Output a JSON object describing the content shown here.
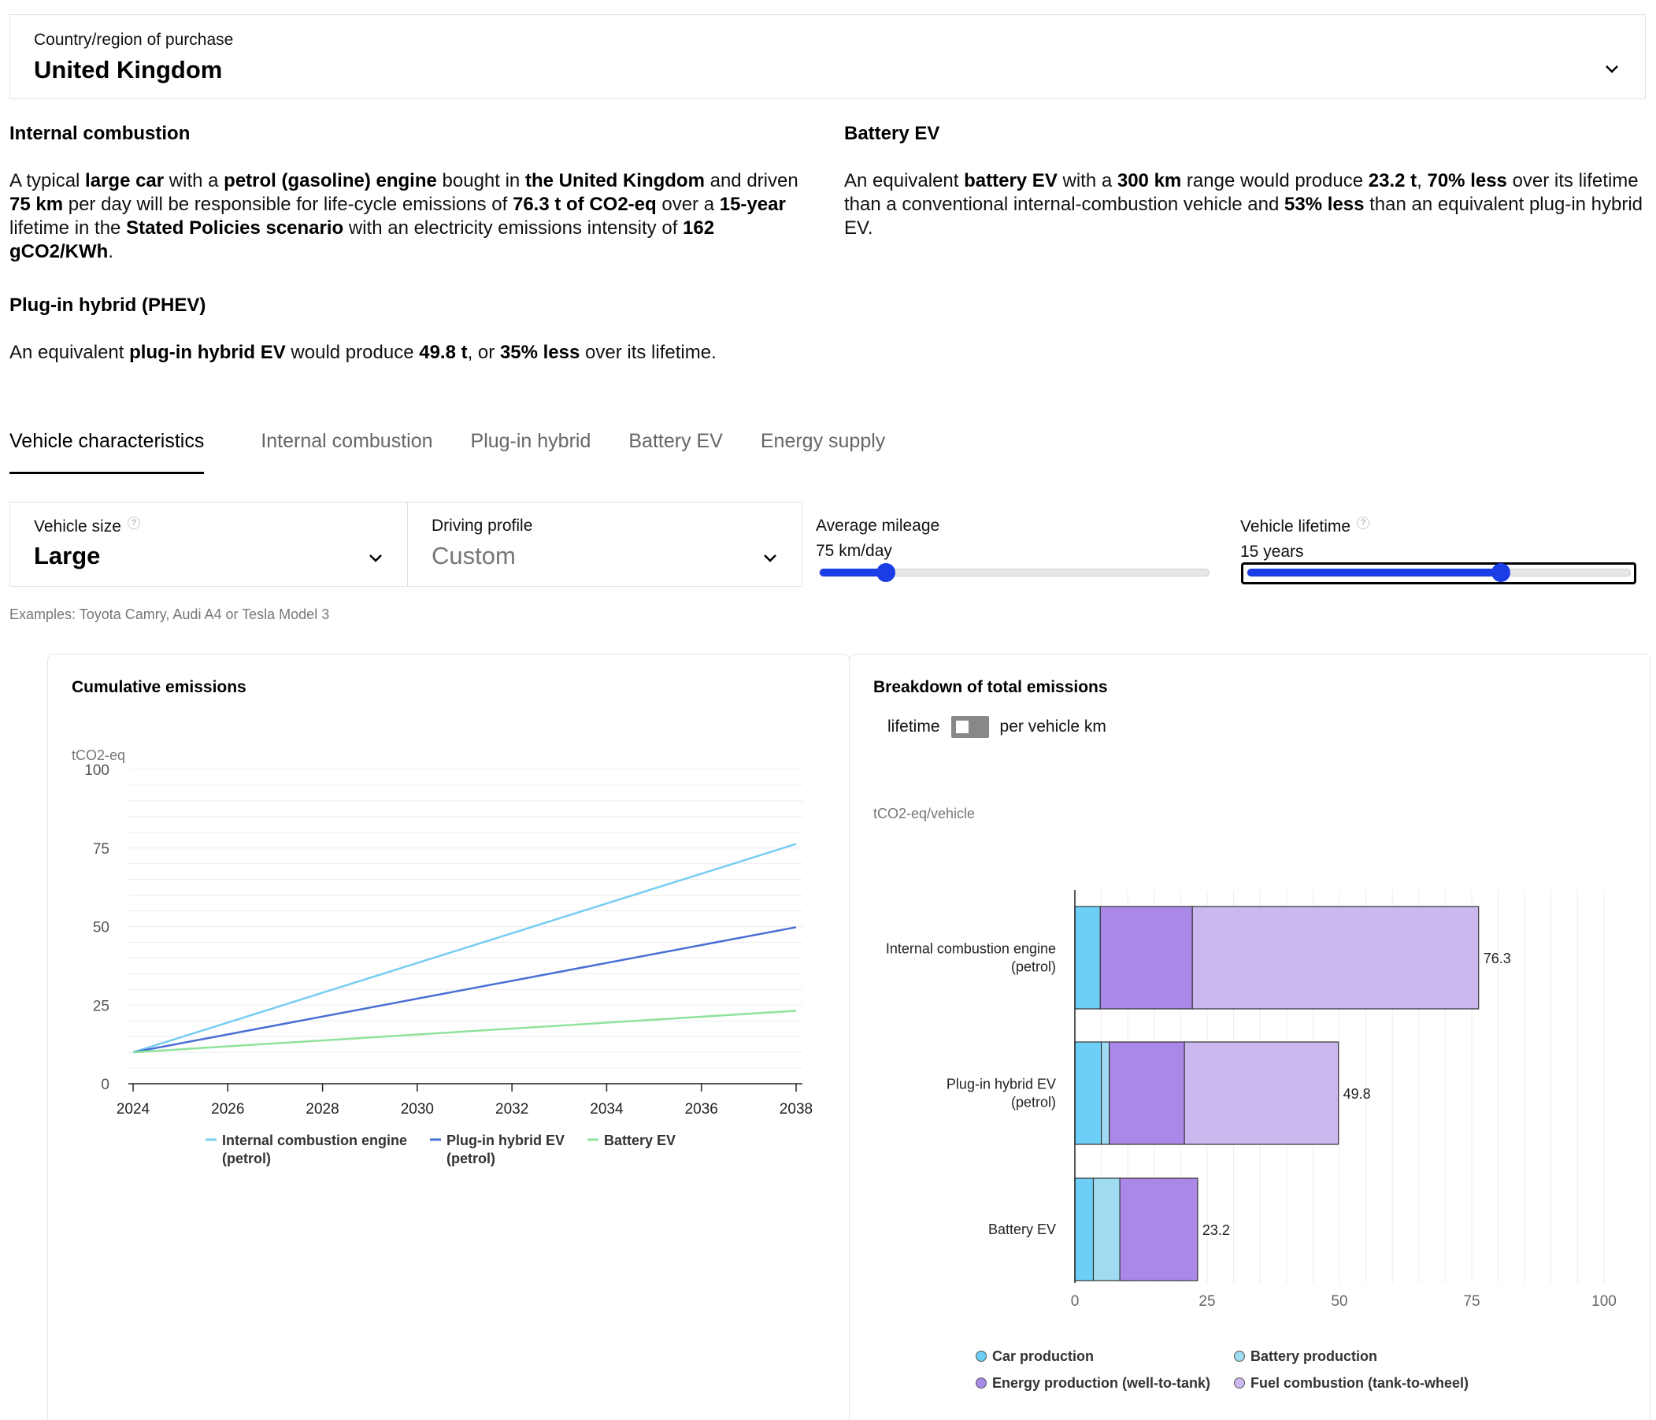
{
  "country": {
    "label": "Country/region of purchase",
    "value": "United Kingdom"
  },
  "summary": {
    "ice": {
      "heading": "Internal combustion",
      "parts": [
        {
          "t": "A typical ",
          "b": false
        },
        {
          "t": "large car",
          "b": true
        },
        {
          "t": " with a ",
          "b": false
        },
        {
          "t": "petrol (gasoline) engine",
          "b": true
        },
        {
          "t": " bought in ",
          "b": false
        },
        {
          "t": "the United Kingdom",
          "b": true
        },
        {
          "t": " and driven ",
          "b": false
        },
        {
          "t": "75 km",
          "b": true
        },
        {
          "t": " per day will be responsible for life-cycle emissions of ",
          "b": false
        },
        {
          "t": "76.3 t of CO2-eq",
          "b": true
        },
        {
          "t": " over a ",
          "b": false
        },
        {
          "t": "15-year",
          "b": true
        },
        {
          "t": " lifetime in the ",
          "b": false
        },
        {
          "t": "Stated Policies scenario",
          "b": true
        },
        {
          "t": " with an electricity emissions intensity of ",
          "b": false
        },
        {
          "t": "162 gCO2/KWh",
          "b": true
        },
        {
          "t": ".",
          "b": false
        }
      ]
    },
    "phev": {
      "heading": "Plug-in hybrid (PHEV)",
      "parts": [
        {
          "t": "An equivalent ",
          "b": false
        },
        {
          "t": "plug-in hybrid EV",
          "b": true
        },
        {
          "t": " would produce ",
          "b": false
        },
        {
          "t": "49.8 t",
          "b": true
        },
        {
          "t": ", or ",
          "b": false
        },
        {
          "t": "35% less",
          "b": true
        },
        {
          "t": " over its lifetime.",
          "b": false
        }
      ]
    },
    "bev": {
      "heading": "Battery EV",
      "parts": [
        {
          "t": "An equivalent ",
          "b": false
        },
        {
          "t": "battery EV",
          "b": true
        },
        {
          "t": " with a ",
          "b": false
        },
        {
          "t": "300 km",
          "b": true
        },
        {
          "t": " range would produce ",
          "b": false
        },
        {
          "t": "23.2 t",
          "b": true
        },
        {
          "t": ", ",
          "b": false
        },
        {
          "t": "70% less",
          "b": true
        },
        {
          "t": " over its lifetime than a conventional internal-combustion vehicle and ",
          "b": false
        },
        {
          "t": "53% less",
          "b": true
        },
        {
          "t": " than an equivalent plug-in hybrid EV.",
          "b": false
        }
      ]
    }
  },
  "tabs": [
    {
      "label": "Vehicle characteristics",
      "active": true
    },
    {
      "label": "Internal combustion",
      "active": false
    },
    {
      "label": "Plug-in hybrid",
      "active": false
    },
    {
      "label": "Battery EV",
      "active": false
    },
    {
      "label": "Energy supply",
      "active": false
    }
  ],
  "controls": {
    "vehicle_size": {
      "label": "Vehicle size",
      "help": "?",
      "value": "Large"
    },
    "driving_profile": {
      "label": "Driving profile",
      "value": "Custom"
    },
    "mileage": {
      "label": "Average mileage",
      "value": "75 km/day",
      "fraction": 0.17
    },
    "lifetime": {
      "label": "Vehicle lifetime",
      "help": "?",
      "value": "15 years",
      "fraction": 0.66
    },
    "examples": "Examples: Toyota Camry, Audi A4 or Tesla Model 3"
  },
  "colors": {
    "ice": "#77cdf2",
    "phev": "#4a6fd4",
    "bev": "#8fe39b",
    "car_production": "#6dcff8",
    "battery_production": "#9fdcf2",
    "energy_production": "#a988e8",
    "fuel_combustion": "#cbb8ef",
    "slider": "#1a3de6"
  },
  "line_chart": {
    "title": "Cumulative emissions",
    "unit": "tCO2-eq"
  },
  "bar_chart": {
    "title": "Breakdown of total emissions",
    "unit": "tCO2-eq/vehicle",
    "toggle_left": "lifetime",
    "toggle_right": "per vehicle km"
  },
  "chart_data": [
    {
      "type": "line",
      "title": "Cumulative emissions",
      "ylabel": "tCO2-eq",
      "xlabel": "",
      "x": [
        2024,
        2038
      ],
      "xticks": [
        "2024",
        "2026",
        "2028",
        "2030",
        "2032",
        "2034",
        "2036",
        "2038"
      ],
      "yticks": [
        "0",
        "25",
        "50",
        "75",
        "100"
      ],
      "xlim": [
        2024,
        2038
      ],
      "ylim": [
        0,
        100
      ],
      "grid": true,
      "legend_position": "bottom",
      "series": [
        {
          "name": "Internal combustion engine (petrol)",
          "legend_lines": [
            "Internal combustion engine",
            "(petrol)"
          ],
          "values": [
            10,
            76.3
          ],
          "color_key": "ice"
        },
        {
          "name": "Plug-in hybrid EV (petrol)",
          "legend_lines": [
            "Plug-in hybrid EV",
            "(petrol)"
          ],
          "values": [
            10,
            49.8
          ],
          "color_key": "phev"
        },
        {
          "name": "Battery EV",
          "legend_lines": [
            "Battery EV"
          ],
          "values": [
            10,
            23.2
          ],
          "color_key": "bev"
        }
      ]
    },
    {
      "type": "bar",
      "orientation": "horizontal",
      "stacked": true,
      "title": "Breakdown of total emissions",
      "xlabel": "",
      "ylabel": "tCO2-eq/vehicle",
      "xlim": [
        0,
        100
      ],
      "xticks": [
        "0",
        "25",
        "50",
        "75",
        "100"
      ],
      "legend_position": "bottom",
      "categories": [
        {
          "label_lines": [
            "Internal combustion engine",
            "(petrol)"
          ],
          "total_label": "76.3"
        },
        {
          "label_lines": [
            "Plug-in hybrid EV",
            "(petrol)"
          ],
          "total_label": "49.8"
        },
        {
          "label_lines": [
            "Battery EV"
          ],
          "total_label": "23.2"
        }
      ],
      "series": [
        {
          "name": "Car production",
          "color_key": "car_production",
          "values": [
            4.8,
            5.0,
            3.5
          ]
        },
        {
          "name": "Battery production",
          "color_key": "battery_production",
          "values": [
            0,
            1.5,
            5.0
          ]
        },
        {
          "name": "Energy production (well-to-tank)",
          "color_key": "energy_production",
          "values": [
            17.4,
            14.2,
            14.7
          ]
        },
        {
          "name": "Fuel combustion (tank-to-wheel)",
          "color_key": "fuel_combustion",
          "values": [
            54.1,
            29.1,
            0
          ]
        }
      ]
    }
  ]
}
